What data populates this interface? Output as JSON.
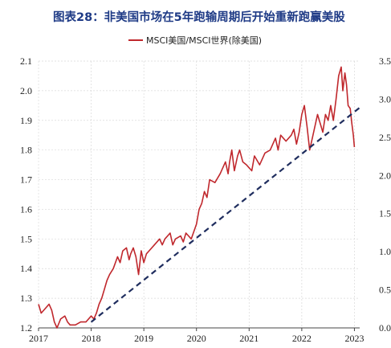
{
  "title": "图表28：非美国市场在5年跑输周期后开始重新跑赢美股",
  "chart_data": {
    "type": "line",
    "x_axis": {
      "ticks": [
        "2017",
        "2018",
        "2019",
        "2020",
        "2021",
        "2022",
        "2023"
      ],
      "range": [
        2017.0,
        2023.1
      ]
    },
    "y_left": {
      "ticks": [
        "1.2",
        "1.3",
        "1.4",
        "1.5",
        "1.6",
        "1.7",
        "1.8",
        "1.9",
        "2.0",
        "2.1"
      ],
      "range": [
        1.2,
        2.1
      ]
    },
    "y_right": {
      "ticks": [
        "0.0",
        "0.5",
        "1.0",
        "1.5",
        "2.0",
        "2.5",
        "3.0",
        "3.5"
      ],
      "range": [
        0.0,
        3.5
      ]
    },
    "grid": true,
    "legend_position": "top-center",
    "series": [
      {
        "name": "MSCI美国/MSCI世界(除美国)",
        "color": "#c0282d",
        "axis": "left",
        "x": [
          2017.0,
          2017.05,
          2017.1,
          2017.2,
          2017.25,
          2017.3,
          2017.35,
          2017.42,
          2017.5,
          2017.55,
          2017.6,
          2017.7,
          2017.8,
          2017.9,
          2018.0,
          2018.05,
          2018.1,
          2018.15,
          2018.2,
          2018.25,
          2018.3,
          2018.35,
          2018.42,
          2018.5,
          2018.55,
          2018.6,
          2018.67,
          2018.72,
          2018.75,
          2018.8,
          2018.85,
          2018.9,
          2018.95,
          2019.0,
          2019.05,
          2019.1,
          2019.2,
          2019.3,
          2019.35,
          2019.4,
          2019.5,
          2019.55,
          2019.6,
          2019.7,
          2019.75,
          2019.8,
          2019.9,
          2020.0,
          2020.05,
          2020.1,
          2020.15,
          2020.2,
          2020.25,
          2020.35,
          2020.45,
          2020.55,
          2020.6,
          2020.63,
          2020.67,
          2020.72,
          2020.78,
          2020.82,
          2020.88,
          2020.95,
          2021.0,
          2021.05,
          2021.1,
          2021.2,
          2021.3,
          2021.4,
          2021.5,
          2021.55,
          2021.6,
          2021.7,
          2021.8,
          2021.85,
          2021.9,
          2021.95,
          2022.0,
          2022.05,
          2022.1,
          2022.15,
          2022.2,
          2022.3,
          2022.4,
          2022.45,
          2022.5,
          2022.55,
          2022.6,
          2022.65,
          2022.7,
          2022.75,
          2022.78,
          2022.82,
          2022.85,
          2022.88,
          2022.92,
          2022.95,
          2022.98,
          2023.0
        ],
        "y": [
          1.28,
          1.25,
          1.26,
          1.28,
          1.26,
          1.22,
          1.2,
          1.23,
          1.24,
          1.22,
          1.21,
          1.21,
          1.22,
          1.22,
          1.24,
          1.23,
          1.25,
          1.28,
          1.3,
          1.33,
          1.36,
          1.38,
          1.4,
          1.44,
          1.42,
          1.46,
          1.47,
          1.43,
          1.45,
          1.47,
          1.44,
          1.38,
          1.46,
          1.42,
          1.45,
          1.46,
          1.48,
          1.5,
          1.48,
          1.5,
          1.52,
          1.48,
          1.5,
          1.51,
          1.49,
          1.52,
          1.5,
          1.55,
          1.6,
          1.62,
          1.66,
          1.64,
          1.7,
          1.69,
          1.72,
          1.76,
          1.72,
          1.76,
          1.8,
          1.73,
          1.78,
          1.8,
          1.76,
          1.75,
          1.74,
          1.73,
          1.78,
          1.75,
          1.79,
          1.8,
          1.84,
          1.8,
          1.85,
          1.83,
          1.85,
          1.87,
          1.82,
          1.86,
          1.92,
          1.95,
          1.88,
          1.8,
          1.84,
          1.92,
          1.86,
          1.92,
          1.9,
          1.95,
          1.9,
          1.97,
          2.05,
          2.08,
          2.0,
          2.06,
          2.02,
          1.95,
          1.94,
          1.89,
          1.85,
          1.81
        ]
      },
      {
        "style": "dashed",
        "color": "#1f2d5e",
        "axis": "left",
        "x": [
          2018.0,
          2023.15
        ],
        "y": [
          1.22,
          1.95
        ]
      }
    ]
  }
}
